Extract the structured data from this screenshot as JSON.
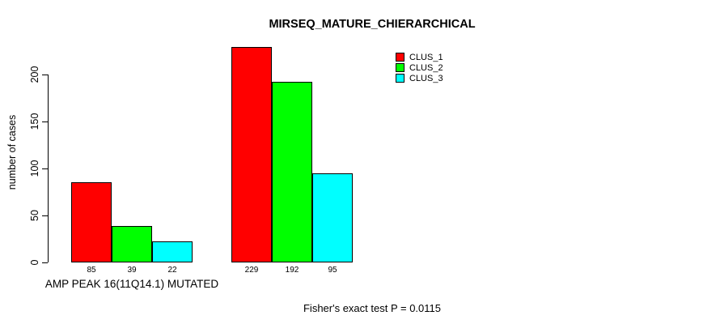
{
  "chart_data": {
    "type": "bar",
    "title": "MIRSEQ_MATURE_CHIERARCHICAL",
    "ylabel": "number of cases",
    "xlabel": "",
    "yticks": [
      0,
      50,
      100,
      150,
      200
    ],
    "ylim": [
      0,
      230
    ],
    "grid": false,
    "legend_position": "top-right-inside",
    "legend": [
      {
        "label": "CLUS_1",
        "color": "#ff0000"
      },
      {
        "label": "CLUS_2",
        "color": "#00ff00"
      },
      {
        "label": "CLUS_3",
        "color": "#00ffff"
      }
    ],
    "categories": [
      "AMP PEAK 16(11Q14.1) MUTATED",
      ""
    ],
    "series": [
      {
        "name": "CLUS_1",
        "values": [
          85,
          229
        ]
      },
      {
        "name": "CLUS_2",
        "values": [
          39,
          192
        ]
      },
      {
        "name": "CLUS_3",
        "values": [
          22,
          95
        ]
      }
    ],
    "groups": [
      {
        "label": "AMP PEAK 16(11Q14.1) MUTATED",
        "values": [
          85,
          39,
          22
        ]
      },
      {
        "label": "",
        "values": [
          229,
          192,
          95
        ]
      }
    ],
    "bar_value_labels": [
      85,
      39,
      22,
      229,
      192,
      95
    ],
    "footnote": "Fisher's exact test P = 0.0115"
  }
}
